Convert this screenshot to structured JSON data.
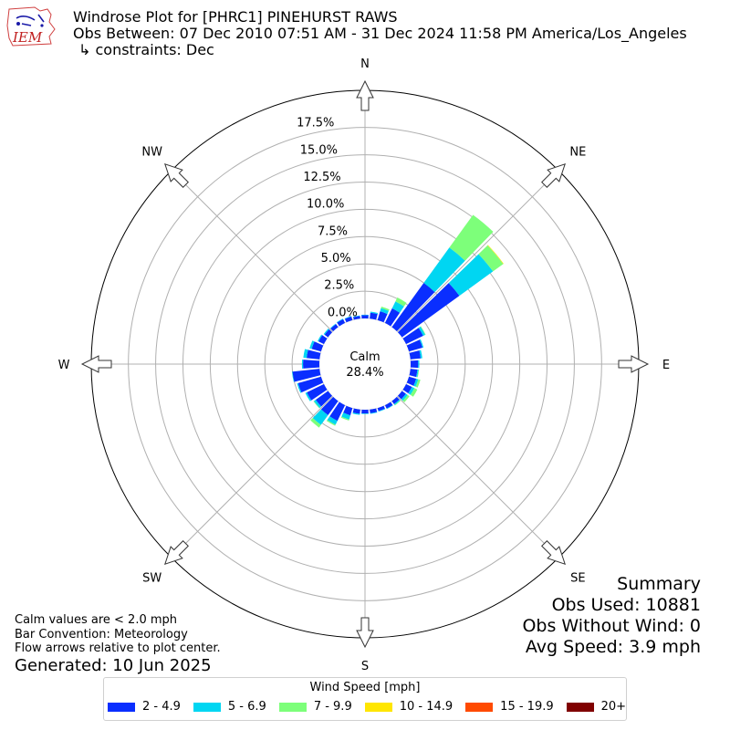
{
  "header": {
    "logo_text": "IEM",
    "title_line1": "Windrose Plot for [PHRC1] PINEHURST RAWS",
    "title_line2": "Obs Between: 07 Dec 2010 07:51 AM - 31 Dec 2024 11:58 PM America/Los_Angeles",
    "title_line3": "↳ constraints: Dec"
  },
  "footer": {
    "note1": "Calm values are < 2.0 mph",
    "note2": "Bar Convention: Meteorology",
    "note3": "Flow arrows relative to plot center.",
    "generated": "Generated: 10 Jun 2025"
  },
  "summary": {
    "title": "Summary",
    "obs_used": "Obs Used: 10881",
    "obs_without_wind": "Obs Without Wind: 0",
    "avg_speed": "Avg Speed: 3.9 mph"
  },
  "legend": {
    "title": "Wind Speed [mph]",
    "items": [
      {
        "label": "2 - 4.9",
        "color": "#0a2eff"
      },
      {
        "label": "5 - 6.9",
        "color": "#00d6f2"
      },
      {
        "label": "7 - 9.9",
        "color": "#7dff7a"
      },
      {
        "label": "10 - 14.9",
        "color": "#ffe600"
      },
      {
        "label": "15 - 19.9",
        "color": "#ff4a00"
      },
      {
        "label": "20+",
        "color": "#800000"
      }
    ]
  },
  "chart_data": {
    "type": "windrose",
    "title": "Windrose Plot for [PHRC1] PINEHURST RAWS",
    "calm_label": "Calm",
    "calm_value": "28.4%",
    "radial_ticks": [
      "0.0%",
      "2.5%",
      "5.0%",
      "7.5%",
      "10.0%",
      "12.5%",
      "15.0%",
      "17.5%"
    ],
    "radial_tick_values": [
      0,
      2.5,
      5,
      7.5,
      10,
      12.5,
      15,
      17.5
    ],
    "rmax": 20.9,
    "cardinals": [
      {
        "label": "N",
        "deg": 0
      },
      {
        "label": "NE",
        "deg": 45
      },
      {
        "label": "E",
        "deg": 90
      },
      {
        "label": "SE",
        "deg": 135
      },
      {
        "label": "S",
        "deg": 180
      },
      {
        "label": "SW",
        "deg": 225
      },
      {
        "label": "W",
        "deg": 270
      },
      {
        "label": "NW",
        "deg": 315
      }
    ],
    "bin_width_deg": 10,
    "series_names": [
      "2 - 4.9",
      "5 - 6.9",
      "7 - 9.9",
      "10 - 14.9",
      "15 - 19.9",
      "20+"
    ],
    "bins": [
      {
        "dir": 0,
        "values": [
          0.3,
          0.05,
          0.0,
          0.0,
          0.0,
          0.0
        ]
      },
      {
        "dir": 10,
        "values": [
          0.55,
          0.1,
          0.0,
          0.0,
          0.0,
          0.0
        ]
      },
      {
        "dir": 20,
        "values": [
          0.85,
          0.3,
          0.15,
          0.0,
          0.0,
          0.0
        ]
      },
      {
        "dir": 30,
        "values": [
          1.5,
          0.7,
          0.4,
          0.0,
          0.0,
          0.0
        ]
      },
      {
        "dir": 40,
        "values": [
          5.0,
          4.0,
          3.7,
          0.0,
          0.0,
          0.0
        ]
      },
      {
        "dir": 50,
        "values": [
          6.5,
          3.8,
          1.15,
          0.05,
          0.0,
          0.0
        ]
      },
      {
        "dir": 60,
        "values": [
          1.75,
          0.2,
          0.05,
          0.0,
          0.0,
          0.0
        ]
      },
      {
        "dir": 70,
        "values": [
          1.3,
          0.1,
          0.0,
          0.0,
          0.0,
          0.0
        ]
      },
      {
        "dir": 80,
        "values": [
          0.95,
          0.15,
          0.0,
          0.0,
          0.0,
          0.0
        ]
      },
      {
        "dir": 90,
        "values": [
          0.7,
          0.1,
          0.0,
          0.0,
          0.0,
          0.0
        ]
      },
      {
        "dir": 100,
        "values": [
          0.65,
          0.1,
          0.05,
          0.0,
          0.0,
          0.0
        ]
      },
      {
        "dir": 110,
        "values": [
          0.7,
          0.2,
          0.2,
          0.0,
          0.0,
          0.0
        ]
      },
      {
        "dir": 120,
        "values": [
          0.6,
          0.25,
          0.3,
          0.0,
          0.0,
          0.0
        ]
      },
      {
        "dir": 130,
        "values": [
          0.45,
          0.2,
          0.2,
          0.0,
          0.0,
          0.0
        ]
      },
      {
        "dir": 140,
        "values": [
          0.35,
          0.1,
          0.05,
          0.0,
          0.0,
          0.0
        ]
      },
      {
        "dir": 150,
        "values": [
          0.35,
          0.05,
          0.0,
          0.0,
          0.0,
          0.0
        ]
      },
      {
        "dir": 160,
        "values": [
          0.3,
          0.05,
          0.0,
          0.0,
          0.0,
          0.0
        ]
      },
      {
        "dir": 170,
        "values": [
          0.35,
          0.05,
          0.0,
          0.0,
          0.0,
          0.0
        ]
      },
      {
        "dir": 180,
        "values": [
          0.35,
          0.05,
          0.0,
          0.0,
          0.0,
          0.0
        ]
      },
      {
        "dir": 190,
        "values": [
          0.4,
          0.1,
          0.0,
          0.0,
          0.0,
          0.0
        ]
      },
      {
        "dir": 200,
        "values": [
          0.7,
          0.4,
          0.1,
          0.0,
          0.0,
          0.0
        ]
      },
      {
        "dir": 210,
        "values": [
          1.6,
          0.4,
          0.1,
          0.0,
          0.0,
          0.0
        ]
      },
      {
        "dir": 220,
        "values": [
          1.6,
          1.1,
          0.3,
          0.0,
          0.0,
          0.0
        ]
      },
      {
        "dir": 230,
        "values": [
          1.4,
          0.2,
          0.05,
          0.0,
          0.0,
          0.0
        ]
      },
      {
        "dir": 240,
        "values": [
          1.75,
          0.15,
          0.0,
          0.0,
          0.0,
          0.0
        ]
      },
      {
        "dir": 250,
        "values": [
          2.2,
          0.1,
          0.0,
          0.0,
          0.0,
          0.0
        ]
      },
      {
        "dir": 260,
        "values": [
          2.5,
          0.05,
          0.0,
          0.0,
          0.0,
          0.0
        ]
      },
      {
        "dir": 270,
        "values": [
          1.5,
          0.1,
          0.0,
          0.0,
          0.0,
          0.0
        ]
      },
      {
        "dir": 280,
        "values": [
          1.2,
          0.3,
          0.0,
          0.0,
          0.0,
          0.0
        ]
      },
      {
        "dir": 290,
        "values": [
          0.9,
          0.2,
          0.0,
          0.0,
          0.0,
          0.0
        ]
      },
      {
        "dir": 300,
        "values": [
          0.55,
          0.1,
          0.0,
          0.0,
          0.0,
          0.0
        ]
      },
      {
        "dir": 310,
        "values": [
          0.4,
          0.1,
          0.0,
          0.0,
          0.0,
          0.0
        ]
      },
      {
        "dir": 320,
        "values": [
          0.35,
          0.05,
          0.0,
          0.0,
          0.0,
          0.0
        ]
      },
      {
        "dir": 330,
        "values": [
          0.4,
          0.05,
          0.0,
          0.0,
          0.0,
          0.0
        ]
      },
      {
        "dir": 340,
        "values": [
          0.35,
          0.05,
          0.0,
          0.0,
          0.0,
          0.0
        ]
      },
      {
        "dir": 350,
        "values": [
          0.25,
          0.05,
          0.0,
          0.0,
          0.0,
          0.0
        ]
      }
    ]
  }
}
